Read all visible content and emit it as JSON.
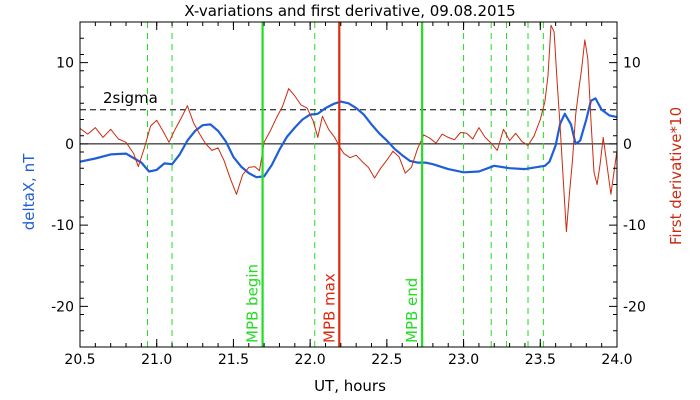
{
  "chart_data": {
    "type": "line",
    "title": "X-variations and first derivative, 09.08.2015",
    "xlabel": "UT, hours",
    "ylabel_left": "deltaX, nT",
    "ylabel_right": "First derivative*10",
    "xlim": [
      20.5,
      24.0
    ],
    "ylim": [
      -25,
      15
    ],
    "x_ticks": [
      20.5,
      21.0,
      21.5,
      22.0,
      22.5,
      23.0,
      23.5,
      24.0
    ],
    "x_tick_labels": [
      "20.5",
      "21.0",
      "21.5",
      "22.0",
      "22.5",
      "23.0",
      "23.5",
      "24.0"
    ],
    "y_ticks": [
      -20,
      -10,
      0,
      10
    ],
    "y_tick_labels": [
      "-20",
      "-10",
      "0",
      "10"
    ],
    "colors": {
      "deltaX": "#1f5fd6",
      "derivative": "#cc2a10",
      "green": "#22dd22",
      "red": "#e02a10"
    },
    "sigma_level": 4.2,
    "sigma_label": "2sigma",
    "zero_line": 0,
    "vertical_markers": [
      {
        "x": 21.69,
        "label": "MPB begin",
        "color": "#22dd22"
      },
      {
        "x": 22.19,
        "label": "MPB max",
        "color": "#e02a10"
      },
      {
        "x": 22.73,
        "label": "MPB end",
        "color": "#22dd22"
      }
    ],
    "dashed_markers": [
      20.94,
      21.1,
      22.03,
      23.0,
      23.18,
      23.28,
      23.42,
      23.52
    ],
    "series": [
      {
        "key": "deltaX",
        "x": [
          20.5,
          20.6,
          20.7,
          20.8,
          20.9,
          20.95,
          21.0,
          21.05,
          21.1,
          21.15,
          21.2,
          21.25,
          21.3,
          21.35,
          21.4,
          21.45,
          21.5,
          21.55,
          21.6,
          21.65,
          21.7,
          21.75,
          21.8,
          21.85,
          21.9,
          21.95,
          22.0,
          22.05,
          22.1,
          22.15,
          22.2,
          22.25,
          22.3,
          22.35,
          22.4,
          22.45,
          22.5,
          22.55,
          22.6,
          22.65,
          22.7,
          22.75,
          22.8,
          22.9,
          23.0,
          23.1,
          23.2,
          23.3,
          23.4,
          23.5,
          23.53,
          23.56,
          23.6,
          23.63,
          23.66,
          23.7,
          23.73,
          23.76,
          23.8,
          23.83,
          23.86,
          23.9,
          23.95,
          24.0
        ],
        "y": [
          -2.2,
          -1.8,
          -1.3,
          -1.2,
          -2.3,
          -3.4,
          -3.2,
          -2.4,
          -2.5,
          -1.3,
          0.4,
          1.6,
          2.3,
          2.4,
          1.6,
          0.3,
          -1.6,
          -2.8,
          -3.6,
          -4.1,
          -4.0,
          -2.6,
          -0.7,
          0.9,
          2.0,
          3.0,
          3.6,
          3.7,
          4.4,
          4.9,
          5.2,
          5.0,
          4.4,
          3.6,
          2.4,
          1.3,
          0.4,
          -0.6,
          -1.4,
          -2.1,
          -2.3,
          -2.3,
          -2.5,
          -3.1,
          -3.5,
          -3.4,
          -2.7,
          -3.0,
          -3.1,
          -2.8,
          -2.7,
          -2.2,
          -0.2,
          2.5,
          3.7,
          2.4,
          0.0,
          0.4,
          3.0,
          5.3,
          5.6,
          4.2,
          3.5,
          3.3
        ]
      },
      {
        "key": "derivative",
        "x": [
          20.5,
          20.55,
          20.6,
          20.65,
          20.7,
          20.75,
          20.8,
          20.85,
          20.88,
          20.92,
          20.96,
          21.0,
          21.04,
          21.08,
          21.12,
          21.16,
          21.2,
          21.24,
          21.28,
          21.32,
          21.36,
          21.4,
          21.44,
          21.48,
          21.52,
          21.56,
          21.6,
          21.64,
          21.67,
          21.7,
          21.74,
          21.78,
          21.82,
          21.86,
          21.9,
          21.94,
          21.98,
          22.02,
          22.05,
          22.08,
          22.12,
          22.16,
          22.19,
          22.22,
          22.26,
          22.3,
          22.34,
          22.38,
          22.42,
          22.46,
          22.5,
          22.54,
          22.58,
          22.62,
          22.66,
          22.7,
          22.74,
          22.78,
          22.82,
          22.86,
          22.9,
          22.94,
          22.98,
          23.02,
          23.06,
          23.1,
          23.14,
          23.18,
          23.22,
          23.26,
          23.3,
          23.34,
          23.38,
          23.42,
          23.46,
          23.5,
          23.53,
          23.55,
          23.57,
          23.59,
          23.61,
          23.63,
          23.65,
          23.67,
          23.69,
          23.71,
          23.73,
          23.75,
          23.77,
          23.79,
          23.81,
          23.83,
          23.85,
          23.87,
          23.89,
          23.91,
          23.93,
          23.96,
          24.0
        ],
        "y": [
          1.9,
          1.2,
          2.0,
          0.8,
          1.8,
          0.6,
          0.2,
          -1.2,
          -2.8,
          -0.5,
          2.2,
          2.9,
          1.6,
          0.2,
          1.8,
          3.2,
          4.7,
          2.6,
          1.2,
          0.0,
          -0.8,
          -0.5,
          -2.1,
          -4.3,
          -6.2,
          -3.8,
          -2.9,
          -2.8,
          -3.3,
          0.2,
          1.6,
          3.2,
          4.6,
          6.8,
          5.9,
          4.8,
          4.4,
          2.8,
          0.8,
          3.4,
          1.8,
          0.8,
          -0.3,
          -1.2,
          -1.7,
          -1.4,
          -2.2,
          -2.9,
          -4.2,
          -3.0,
          -2.0,
          -0.9,
          -1.6,
          -3.6,
          -2.9,
          -0.6,
          1.1,
          0.7,
          0.1,
          1.2,
          0.8,
          0.5,
          1.4,
          1.3,
          0.6,
          2.0,
          0.8,
          0.1,
          -0.8,
          1.8,
          0.4,
          1.3,
          0.3,
          -0.2,
          1.0,
          3.0,
          5.2,
          8.4,
          14.6,
          13.8,
          7.5,
          2.0,
          -4.5,
          -10.8,
          -6.2,
          -2.0,
          3.5,
          6.5,
          9.3,
          12.8,
          10.5,
          3.0,
          -3.5,
          -5.0,
          -2.5,
          0.8,
          -2.0,
          -6.2,
          -0.8
        ]
      }
    ]
  }
}
